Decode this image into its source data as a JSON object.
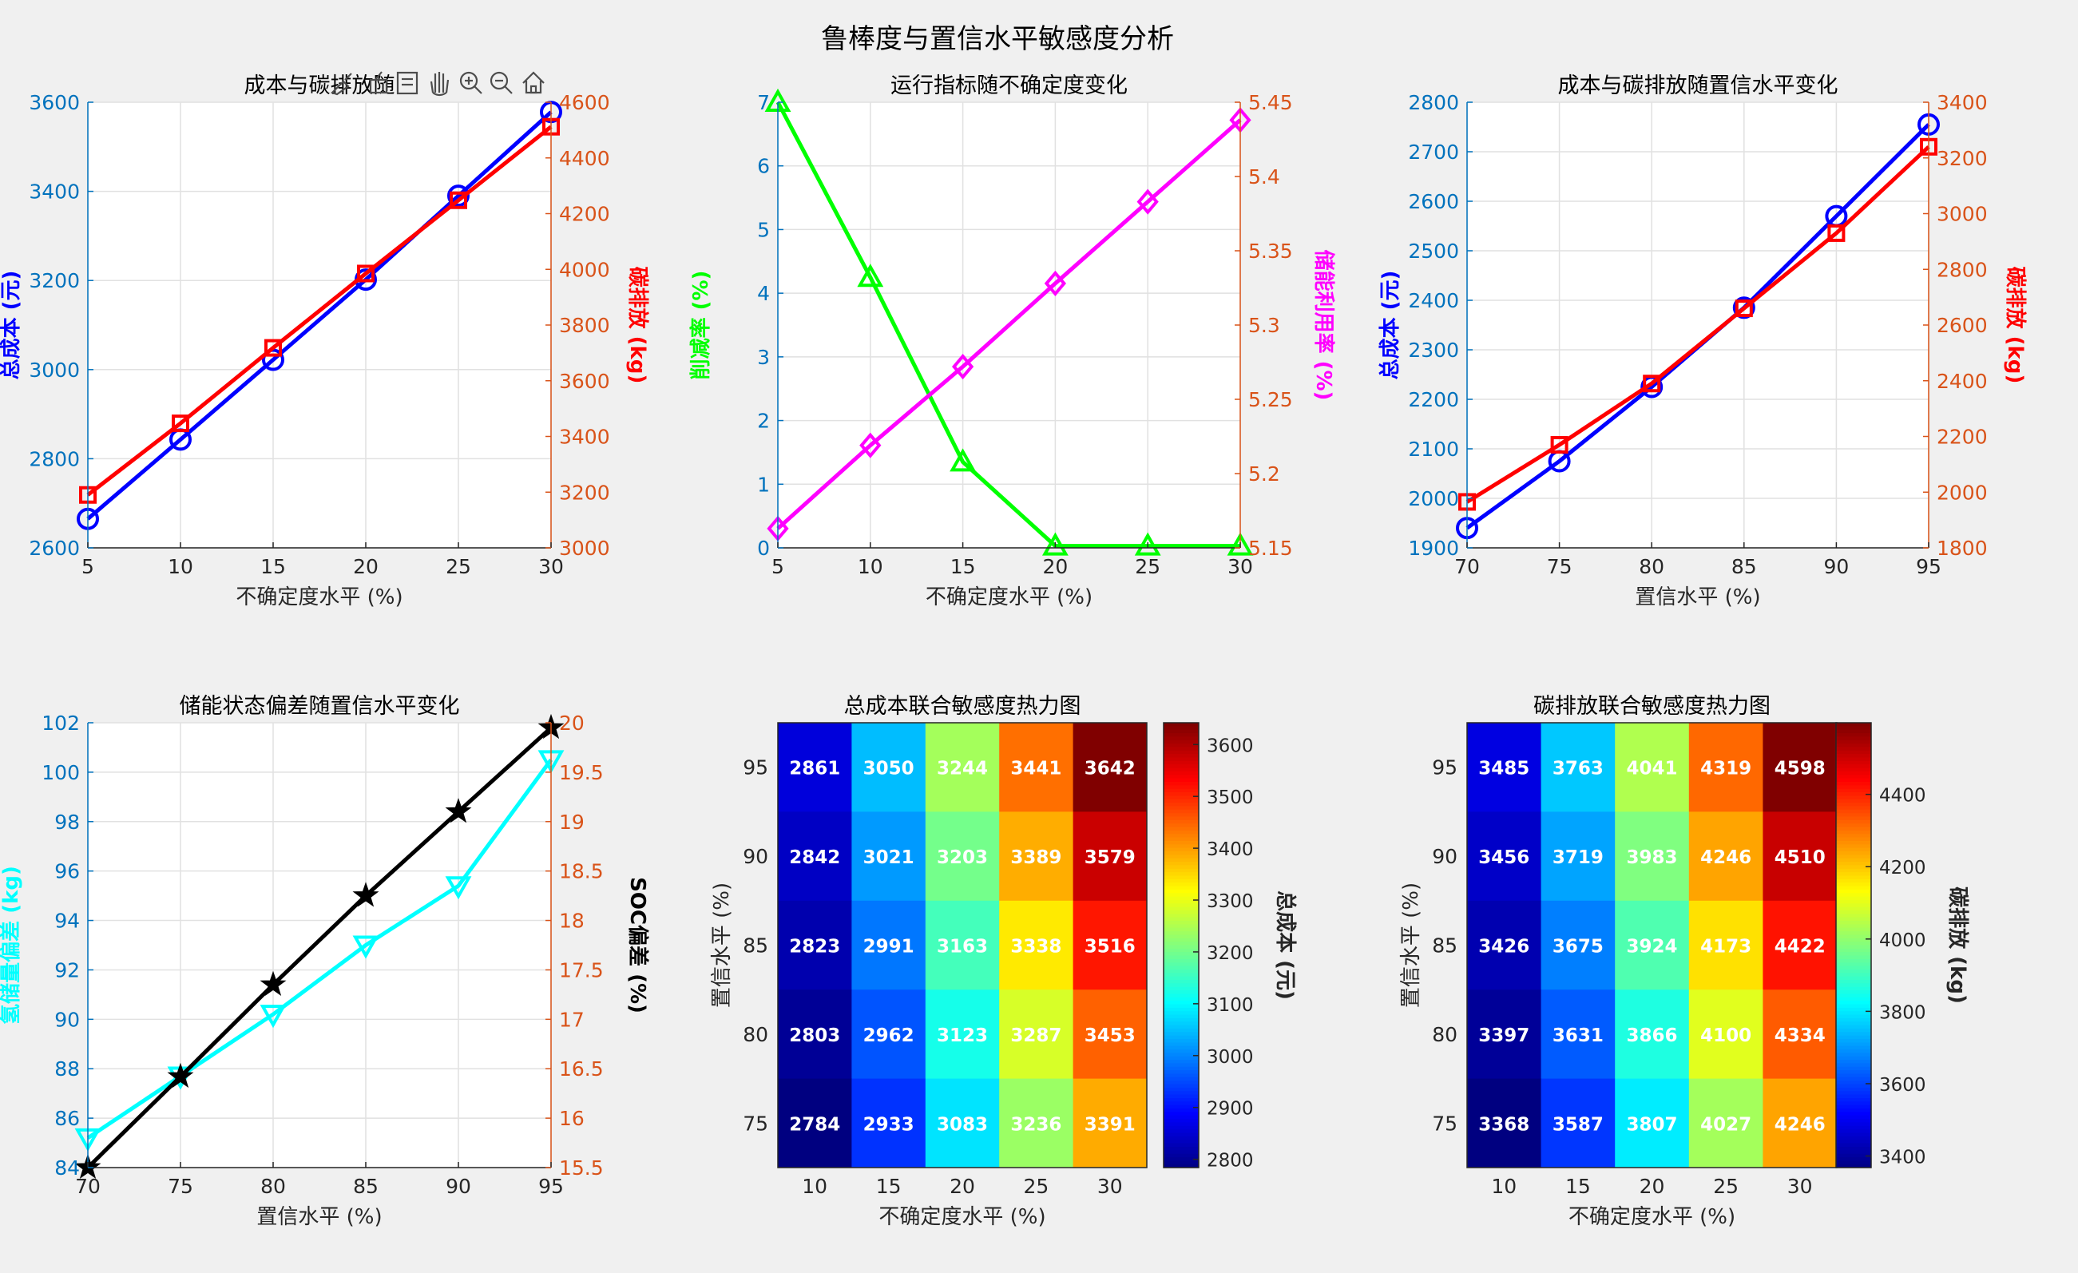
{
  "figure": {
    "title": "鲁棒度与置信水平敏感度分析",
    "toolbar": [
      "brush-icon",
      "datatip-icon",
      "legend-icon",
      "pan-icon",
      "zoom-in-icon",
      "zoom-out-icon",
      "home-icon"
    ]
  },
  "colors": {
    "blue": "#0000ff",
    "red": "#ff0000",
    "green": "#00ff00",
    "magenta": "#ff00ff",
    "cyan": "#00ffff",
    "black": "#000000",
    "left_axis": "#0072bd",
    "right_axis": "#d95319"
  },
  "chart_data": [
    {
      "id": "p1",
      "type": "line",
      "title": "成本与碳排放随",
      "xlabel": "不确定度水平 (%)",
      "ylabel": "总成本 (元)",
      "y2label": "碳排放 (kg)",
      "x": [
        5,
        10,
        15,
        20,
        25,
        30
      ],
      "xlim": [
        5,
        30
      ],
      "xticks": [
        5,
        10,
        15,
        20,
        25,
        30
      ],
      "ylim": [
        2600,
        3600
      ],
      "yticks": [
        2600,
        2800,
        3000,
        3200,
        3400,
        3600
      ],
      "y2lim": [
        3000,
        4600
      ],
      "y2ticks": [
        3000,
        3200,
        3400,
        3600,
        3800,
        4000,
        4200,
        4400,
        4600
      ],
      "grid": true,
      "series": [
        {
          "axis": "left",
          "color": "blue",
          "marker": "circle",
          "values": [
            2665,
            2843,
            3022,
            3202,
            3390,
            3578
          ]
        },
        {
          "axis": "right",
          "color": "red",
          "marker": "square",
          "values": [
            3190,
            3447,
            3718,
            3985,
            4248,
            4512
          ]
        }
      ]
    },
    {
      "id": "p2",
      "type": "line",
      "title": "运行指标随不确定度变化",
      "xlabel": "不确定度水平 (%)",
      "ylabel": "削减率 (%)",
      "y2label": "储能利用率 (%)",
      "x": [
        5,
        10,
        15,
        20,
        25,
        30
      ],
      "xlim": [
        5,
        30
      ],
      "xticks": [
        5,
        10,
        15,
        20,
        25,
        30
      ],
      "ylim": [
        0,
        7
      ],
      "yticks": [
        0,
        1,
        2,
        3,
        4,
        5,
        6,
        7
      ],
      "y2lim": [
        5.15,
        5.45
      ],
      "y2ticks": [
        "5.15",
        "5.2",
        "5.25",
        "5.3",
        "5.35",
        "5.4",
        "5.45"
      ],
      "grid": true,
      "ylabel_color": "green",
      "y2label_color": "magenta",
      "series": [
        {
          "axis": "left",
          "color": "green",
          "marker": "triangle-up",
          "values": [
            7,
            4.25,
            1.35,
            0.03,
            0.03,
            0.03
          ]
        },
        {
          "axis": "right",
          "color": "magenta",
          "marker": "diamond",
          "values": [
            5.163,
            5.219,
            5.272,
            5.328,
            5.383,
            5.438
          ]
        }
      ]
    },
    {
      "id": "p3",
      "type": "line",
      "title": "成本与碳排放随置信水平变化",
      "xlabel": "置信水平 (%)",
      "ylabel": "总成本 (元)",
      "y2label": "碳排放 (kg)",
      "x": [
        70,
        75,
        80,
        85,
        90,
        95
      ],
      "xlim": [
        70,
        95
      ],
      "xticks": [
        70,
        75,
        80,
        85,
        90,
        95
      ],
      "ylim": [
        1900,
        2800
      ],
      "yticks": [
        1900,
        2000,
        2100,
        2200,
        2300,
        2400,
        2500,
        2600,
        2700,
        2800
      ],
      "y2lim": [
        1800,
        3400
      ],
      "y2ticks": [
        1800,
        2000,
        2200,
        2400,
        2600,
        2800,
        3000,
        3200,
        3400
      ],
      "grid": true,
      "series": [
        {
          "axis": "left",
          "color": "blue",
          "marker": "circle",
          "values": [
            1940,
            2075,
            2225,
            2385,
            2570,
            2755
          ]
        },
        {
          "axis": "right",
          "color": "red",
          "marker": "square",
          "values": [
            1965,
            2170,
            2390,
            2660,
            2930,
            3240
          ]
        }
      ]
    },
    {
      "id": "p4",
      "type": "line",
      "title": "储能状态偏差随置信水平变化",
      "xlabel": "置信水平 (%)",
      "ylabel": "氢储量偏差 (kg)",
      "y2label": "SOC偏差 (%)",
      "x": [
        70,
        75,
        80,
        85,
        90,
        95
      ],
      "xlim": [
        70,
        95
      ],
      "xticks": [
        70,
        75,
        80,
        85,
        90,
        95
      ],
      "ylim": [
        84,
        102
      ],
      "yticks": [
        84,
        86,
        88,
        90,
        92,
        94,
        96,
        98,
        100,
        102
      ],
      "y2lim": [
        15.5,
        20
      ],
      "y2ticks": [
        "15.5",
        "16",
        "16.5",
        "17",
        "17.5",
        "18",
        "18.5",
        "19",
        "19.5",
        "20"
      ],
      "grid": true,
      "ylabel_color": "cyan",
      "y2label_color": "black",
      "series": [
        {
          "axis": "left",
          "color": "cyan",
          "marker": "triangle-down",
          "values": [
            85.2,
            87.7,
            90.2,
            93.0,
            95.4,
            100.5
          ]
        },
        {
          "axis": "right",
          "color": "black",
          "marker": "star",
          "values": [
            15.5,
            16.42,
            17.35,
            18.25,
            19.1,
            19.95
          ]
        }
      ]
    },
    {
      "id": "p5",
      "type": "heatmap",
      "title": "总成本联合敏感度热力图",
      "xlabel": "不确定度水平 (%)",
      "ylabel": "置信水平 (%)",
      "colorbar_label": "总成本 (元)",
      "colormap": "jet",
      "x": [
        10,
        15,
        20,
        25,
        30
      ],
      "y": [
        95,
        90,
        85,
        80,
        75
      ],
      "values": [
        [
          2861,
          3050,
          3244,
          3441,
          3642
        ],
        [
          2842,
          3021,
          3203,
          3389,
          3579
        ],
        [
          2823,
          2991,
          3163,
          3338,
          3516
        ],
        [
          2803,
          2962,
          3123,
          3287,
          3453
        ],
        [
          2784,
          2933,
          3083,
          3236,
          3391
        ]
      ],
      "clim": [
        2784,
        3642
      ],
      "colorbar_ticks": [
        2800,
        2900,
        3000,
        3100,
        3200,
        3300,
        3400,
        3500,
        3600
      ]
    },
    {
      "id": "p6",
      "type": "heatmap",
      "title": "碳排放联合敏感度热力图",
      "xlabel": "不确定度水平 (%)",
      "ylabel": "置信水平 (%)",
      "colorbar_label": "碳排放 (kg)",
      "colormap": "jet",
      "x": [
        10,
        15,
        20,
        25,
        30
      ],
      "y": [
        95,
        90,
        85,
        80,
        75
      ],
      "values": [
        [
          3485,
          3763,
          4041,
          4319,
          4598
        ],
        [
          3456,
          3719,
          3983,
          4246,
          4510
        ],
        [
          3426,
          3675,
          3924,
          4173,
          4422
        ],
        [
          3397,
          3631,
          3866,
          4100,
          4334
        ],
        [
          3368,
          3587,
          3807,
          4027,
          4246
        ]
      ],
      "clim": [
        3368,
        4598
      ],
      "colorbar_ticks": [
        3400,
        3600,
        3800,
        4000,
        4200,
        4400
      ]
    }
  ]
}
